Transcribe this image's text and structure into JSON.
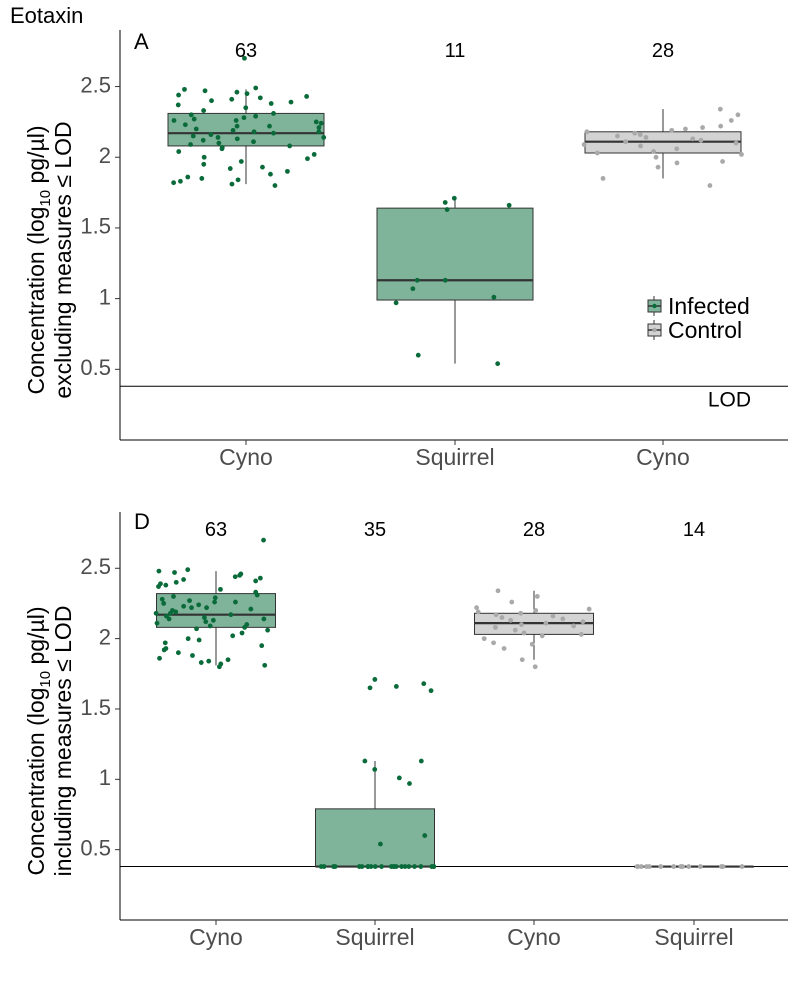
{
  "title": "Eotaxin",
  "colors": {
    "infected_fill": "#7fb39a",
    "infected_point": "#0a6b3a",
    "control_fill": "#d3d3d3",
    "control_point": "#a9a9a9",
    "box_stroke": "#333333",
    "median": "#333333"
  },
  "lod_value": 0.38,
  "lod_label": "LOD",
  "legend": [
    {
      "label": "Infected",
      "group": "infected"
    },
    {
      "label": "Control",
      "group": "control"
    }
  ],
  "chart_data": [
    {
      "type": "box",
      "panel": "A",
      "ylabel_line1": "Concentration (log",
      "ylabel_sub": "10",
      "ylabel_line1b": " pg/µl)",
      "ylabel_line2": "excluding measures ≤ LOD",
      "ylim": [
        0,
        2.9
      ],
      "yticks": [
        0.5,
        1,
        1.5,
        2,
        2.5
      ],
      "ytick_labels": [
        "0.5",
        "1",
        "1.5",
        "2",
        "2.5"
      ],
      "groups": [
        {
          "label": "Cyno",
          "group": "infected",
          "n": "63",
          "q1": 2.08,
          "median": 2.17,
          "q3": 2.31,
          "whisker_low": 1.81,
          "whisker_high": 2.48,
          "points": [
            2.7,
            2.49,
            2.48,
            2.47,
            2.46,
            2.45,
            2.44,
            2.43,
            2.42,
            2.41,
            2.4,
            2.39,
            2.38,
            2.37,
            2.35,
            2.33,
            2.31,
            2.3,
            2.29,
            2.28,
            2.27,
            2.26,
            2.25,
            2.24,
            2.23,
            2.22,
            2.21,
            2.2,
            2.19,
            2.18,
            2.17,
            2.16,
            2.15,
            2.14,
            2.13,
            2.12,
            2.11,
            2.1,
            2.09,
            2.08,
            2.07,
            2.06,
            2.04,
            2.02,
            2.0,
            1.99,
            1.97,
            1.95,
            1.93,
            1.92,
            1.9,
            1.88,
            1.86,
            1.85,
            1.84,
            1.83,
            1.82,
            1.81,
            1.8,
            2.22,
            2.18,
            2.14,
            2.26
          ]
        },
        {
          "label": "Squirrel",
          "group": "infected",
          "n": "11",
          "q1": 0.99,
          "median": 1.13,
          "q3": 1.64,
          "whisker_low": 0.54,
          "whisker_high": 1.71,
          "points": [
            1.71,
            1.68,
            1.66,
            1.63,
            1.13,
            1.13,
            1.07,
            1.01,
            0.97,
            0.6,
            0.54
          ]
        },
        {
          "label": "Cyno",
          "group": "control",
          "n": "28",
          "q1": 2.03,
          "median": 2.11,
          "q3": 2.18,
          "whisker_low": 1.85,
          "whisker_high": 2.34,
          "points": [
            2.34,
            2.3,
            2.26,
            2.22,
            2.21,
            2.2,
            2.19,
            2.18,
            2.17,
            2.16,
            2.15,
            2.14,
            2.13,
            2.12,
            2.11,
            2.1,
            2.09,
            2.08,
            2.06,
            2.04,
            2.03,
            2.02,
            2.0,
            1.97,
            1.96,
            1.93,
            1.85,
            1.8
          ]
        }
      ]
    },
    {
      "type": "box",
      "panel": "D",
      "ylabel_line1": "Concentration (log",
      "ylabel_sub": "10",
      "ylabel_line1b": " pg/µl)",
      "ylabel_line2": "including measures ≤ LOD",
      "ylim": [
        0,
        2.9
      ],
      "yticks": [
        0.5,
        1,
        1.5,
        2,
        2.5
      ],
      "ytick_labels": [
        "0.5",
        "1",
        "1.5",
        "2",
        "2.5"
      ],
      "groups": [
        {
          "label": "Cyno",
          "group": "infected",
          "n": "63",
          "q1": 2.08,
          "median": 2.17,
          "q3": 2.32,
          "whisker_low": 1.81,
          "whisker_high": 2.48,
          "points": [
            2.7,
            2.49,
            2.48,
            2.47,
            2.46,
            2.45,
            2.44,
            2.43,
            2.42,
            2.41,
            2.4,
            2.39,
            2.38,
            2.37,
            2.35,
            2.33,
            2.31,
            2.3,
            2.29,
            2.28,
            2.27,
            2.26,
            2.25,
            2.24,
            2.23,
            2.22,
            2.21,
            2.2,
            2.19,
            2.18,
            2.17,
            2.16,
            2.15,
            2.14,
            2.13,
            2.12,
            2.11,
            2.1,
            2.09,
            2.08,
            2.07,
            2.06,
            2.04,
            2.02,
            2.0,
            1.99,
            1.97,
            1.95,
            1.93,
            1.92,
            1.9,
            1.88,
            1.86,
            1.85,
            1.84,
            1.83,
            1.82,
            1.81,
            1.8,
            2.22,
            2.18,
            2.14,
            2.26
          ]
        },
        {
          "label": "Squirrel",
          "group": "infected",
          "n": "35",
          "q1": 0.38,
          "median": 0.38,
          "q3": 0.79,
          "whisker_low": 0.38,
          "whisker_high": 1.13,
          "points": [
            1.71,
            1.68,
            1.66,
            1.65,
            1.63,
            1.13,
            1.13,
            1.07,
            1.01,
            0.97,
            0.6,
            0.54,
            0.38,
            0.38,
            0.38,
            0.38,
            0.38,
            0.38,
            0.38,
            0.38,
            0.38,
            0.38,
            0.38,
            0.38,
            0.38,
            0.38,
            0.38,
            0.38,
            0.38,
            0.38,
            0.38,
            0.38,
            0.38,
            0.38,
            0.38
          ]
        },
        {
          "label": "Cyno",
          "group": "control",
          "n": "28",
          "q1": 2.03,
          "median": 2.11,
          "q3": 2.18,
          "whisker_low": 1.85,
          "whisker_high": 2.34,
          "points": [
            2.34,
            2.3,
            2.26,
            2.22,
            2.21,
            2.2,
            2.19,
            2.18,
            2.17,
            2.16,
            2.15,
            2.14,
            2.13,
            2.12,
            2.11,
            2.1,
            2.09,
            2.08,
            2.06,
            2.04,
            2.03,
            2.02,
            2.0,
            1.97,
            1.96,
            1.93,
            1.85,
            1.8
          ]
        },
        {
          "label": "Squirrel",
          "group": "control",
          "n": "14",
          "q1": 0.38,
          "median": 0.38,
          "q3": 0.38,
          "whisker_low": 0.38,
          "whisker_high": 0.38,
          "points": [
            0.38,
            0.38,
            0.38,
            0.38,
            0.38,
            0.38,
            0.38,
            0.38,
            0.38,
            0.38,
            0.38,
            0.38,
            0.38,
            0.38
          ]
        }
      ]
    }
  ]
}
